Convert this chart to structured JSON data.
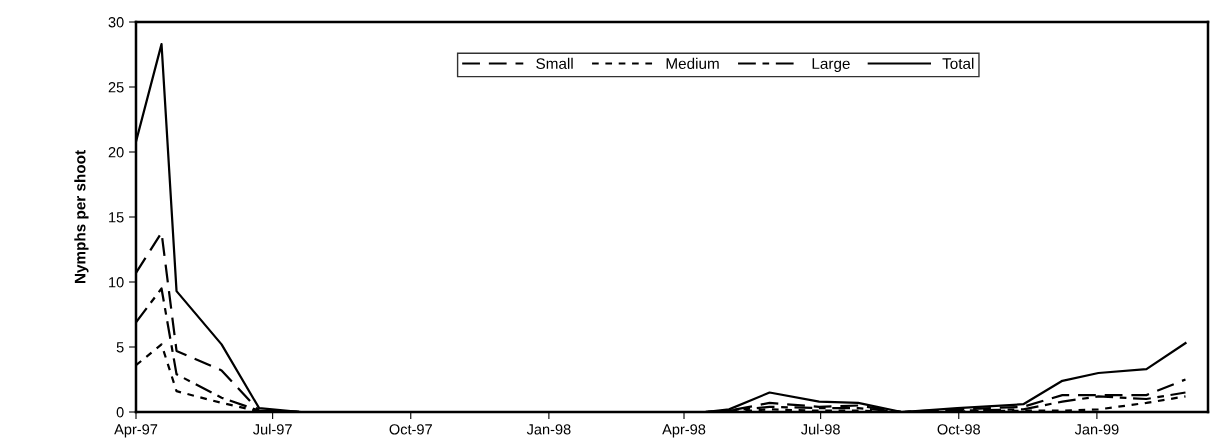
{
  "chart_data": {
    "type": "line",
    "ylabel": "Nymphs per shoot",
    "x": [
      "1997-04-01",
      "1997-04-18",
      "1997-04-28",
      "1997-05-28",
      "1997-06-22",
      "1997-07-20",
      "1998-04-15",
      "1998-05-01",
      "1998-05-28",
      "1998-06-30",
      "1998-07-26",
      "1998-08-24",
      "1998-09-30",
      "1998-11-13",
      "1998-12-09",
      "1999-01-02",
      "1999-02-03",
      "1999-03-01"
    ],
    "series": [
      {
        "name": "Small",
        "color": "#000000",
        "line_style": "dashed",
        "values": [
          10.7,
          13.8,
          4.7,
          3.2,
          0.1,
          0,
          0,
          0.1,
          0.7,
          0.4,
          0.5,
          0,
          0.2,
          0.4,
          1.3,
          1.3,
          1.3,
          2.5
        ]
      },
      {
        "name": "Medium",
        "color": "#000000",
        "line_style": "dotted",
        "values": [
          3.6,
          5.2,
          1.6,
          0.7,
          0.05,
          0,
          0,
          0,
          0.2,
          0.1,
          0.1,
          0,
          0.05,
          0.1,
          0.1,
          0.2,
          0.7,
          1.2
        ]
      },
      {
        "name": "Large",
        "color": "#000000",
        "line_style": "dashdot",
        "values": [
          6.9,
          9.5,
          2.9,
          1.1,
          0.1,
          0,
          0,
          0.1,
          0.4,
          0.3,
          0.3,
          0,
          0.1,
          0.2,
          0.8,
          1.2,
          1.0,
          1.5
        ]
      },
      {
        "name": "Total",
        "color": "#000000",
        "line_style": "solid",
        "values": [
          20.8,
          28.3,
          9.3,
          5.2,
          0.3,
          0,
          0,
          0.2,
          1.5,
          0.8,
          0.7,
          0,
          0.3,
          0.6,
          2.4,
          3.0,
          3.3,
          5.3
        ]
      }
    ],
    "xlim": [
      "1997-04-01",
      "1999-03-16"
    ],
    "xticks": [
      {
        "value": "1997-04-01",
        "label": "Apr-97"
      },
      {
        "value": "1997-07-01",
        "label": "Jul-97"
      },
      {
        "value": "1997-10-01",
        "label": "Oct-97"
      },
      {
        "value": "1998-01-01",
        "label": "Jan-98"
      },
      {
        "value": "1998-04-01",
        "label": "Apr-98"
      },
      {
        "value": "1998-07-01",
        "label": "Jul-98"
      },
      {
        "value": "1998-10-01",
        "label": "Oct-98"
      },
      {
        "value": "1999-01-01",
        "label": "Jan-99"
      }
    ],
    "ylim": [
      0,
      30
    ],
    "yticks": [
      0,
      5,
      10,
      15,
      20,
      25,
      30
    ],
    "grid": false,
    "legend": "top right",
    "marker": "none"
  }
}
